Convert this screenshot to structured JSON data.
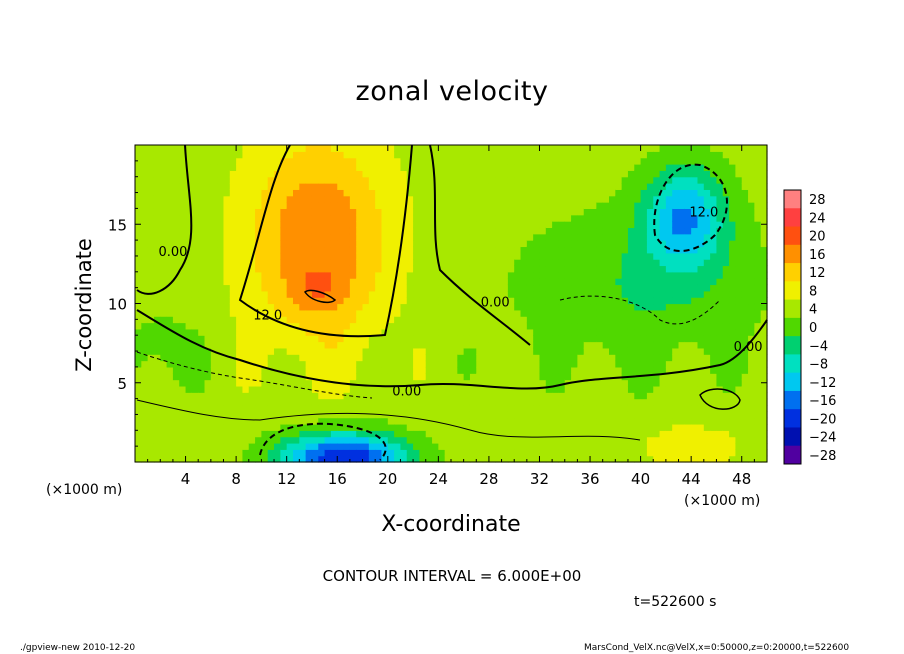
{
  "chart_data": {
    "type": "heatmap",
    "title": "zonal velocity",
    "xlabel": "X-coordinate",
    "ylabel": "Z-coordinate",
    "x_unit_label": "(×1000 m)",
    "xlim": [
      0,
      50
    ],
    "ylim": [
      0,
      20
    ],
    "x_ticks": [
      "4",
      "8",
      "12",
      "16",
      "20",
      "24",
      "28",
      "32",
      "36",
      "40",
      "44",
      "48"
    ],
    "x_tick_values": [
      4,
      8,
      12,
      16,
      20,
      24,
      28,
      32,
      36,
      40,
      44,
      48
    ],
    "y_ticks": [
      "5",
      "10",
      "15"
    ],
    "y_tick_values": [
      5,
      10,
      15
    ],
    "contour_labels": [
      {
        "text": "0.00",
        "x": 3,
        "z": 13
      },
      {
        "text": "12.0",
        "x": 10.5,
        "z": 9
      },
      {
        "text": "0.00",
        "x": 28.5,
        "z": 9.8
      },
      {
        "text": "0.00",
        "x": 21.5,
        "z": 4.2
      },
      {
        "text": "12.0",
        "x": 45,
        "z": 15.5
      },
      {
        "text": "0.00",
        "x": 48.5,
        "z": 7
      }
    ],
    "colorbar": {
      "labels": [
        "28",
        "24",
        "20",
        "16",
        "12",
        "8",
        "4",
        "0",
        "−4",
        "−8",
        "−12",
        "−16",
        "−20",
        "−24",
        "−28"
      ],
      "values": [
        28,
        24,
        20,
        16,
        12,
        8,
        4,
        0,
        -4,
        -8,
        -12,
        -16,
        -20,
        -24,
        -28
      ],
      "colors": [
        "#ff8080",
        "#ff4040",
        "#ff5010",
        "#ff9000",
        "#ffd000",
        "#f0f000",
        "#a8e800",
        "#50d800",
        "#00d070",
        "#00e0c0",
        "#00c8f0",
        "#0070f0",
        "#0030e0",
        "#0010b0",
        "#5000a0"
      ]
    },
    "field_features": [
      {
        "kind": "max",
        "x": 14.5,
        "z": 10.8,
        "value": 18
      },
      {
        "kind": "min",
        "x": 16.5,
        "z": 1.2,
        "value": -22
      },
      {
        "kind": "min",
        "x": 43.5,
        "z": 15.5,
        "value": -13
      }
    ]
  },
  "contour_interval": "CONTOUR INTERVAL = 6.000E+00",
  "time_label": "t=522600 s",
  "footer_left": "./gpview-new  2010-12-20",
  "footer_right": "MarsCond_VelX.nc@VelX,x=0:50000,z=0:20000,t=522600"
}
